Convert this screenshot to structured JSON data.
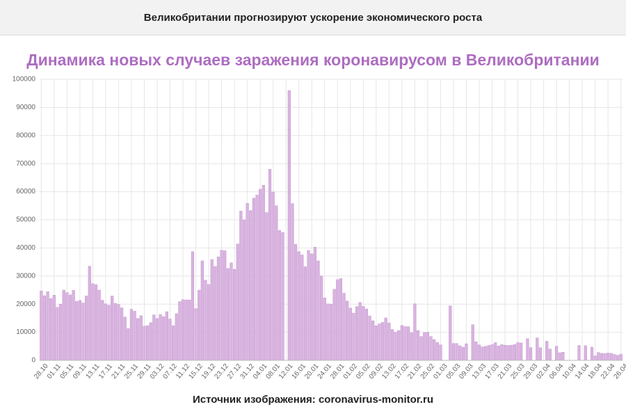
{
  "header": {
    "title": "Великобритании прогнозируют ускорение экономического роста"
  },
  "caption": "Источник изображения: coronavirus-monitor.ru",
  "chart_data": {
    "type": "bar",
    "title": "Динамика новых случаев заражения коронавирусом в Великобритании",
    "color": "#d9b3e0",
    "grid": true,
    "ylim": [
      0,
      100000
    ],
    "yticks": [
      0,
      10000,
      20000,
      30000,
      40000,
      50000,
      60000,
      70000,
      80000,
      90000,
      100000
    ],
    "categories": [
      "28.10",
      null,
      null,
      null,
      "01.11",
      null,
      null,
      null,
      "05.11",
      null,
      null,
      null,
      "09.11",
      null,
      null,
      null,
      "13.11",
      null,
      null,
      null,
      "17.11",
      null,
      null,
      null,
      "21.11",
      null,
      null,
      null,
      "25.11",
      null,
      null,
      null,
      "29.11",
      null,
      null,
      null,
      "03.12",
      null,
      null,
      null,
      "07.12",
      null,
      null,
      null,
      "11.12",
      null,
      null,
      null,
      "15.12",
      null,
      null,
      null,
      "19.12",
      null,
      null,
      null,
      "23.12",
      null,
      null,
      null,
      "27.12",
      null,
      null,
      null,
      "31.12",
      null,
      null,
      null,
      "04.01",
      null,
      null,
      null,
      "08.01",
      null,
      null,
      null,
      "12.01",
      null,
      null,
      null,
      "16.01",
      null,
      null,
      null,
      "20.01",
      null,
      null,
      null,
      "24.01",
      null,
      null,
      null,
      "28.01",
      null,
      null,
      null,
      "01.02",
      null,
      null,
      null,
      "05.02",
      null,
      null,
      null,
      "09.02",
      null,
      null,
      null,
      "13.02",
      null,
      null,
      null,
      "17.02",
      null,
      null,
      null,
      "21.02",
      null,
      null,
      null,
      "25.02",
      null,
      null,
      null,
      "01.03",
      null,
      null,
      null,
      "05.03",
      null,
      null,
      null,
      "09.03",
      null,
      null,
      null,
      "13.03",
      null,
      null,
      null,
      "17.03",
      null,
      null,
      null,
      "21.03",
      null,
      null,
      null,
      "25.03",
      null,
      null,
      null,
      "29.03",
      null,
      null,
      null,
      "02.04",
      null,
      null,
      null,
      "06.04",
      null,
      null,
      null,
      "10.04",
      null,
      null,
      null,
      "14.04",
      null,
      null,
      null,
      "18.04",
      null,
      null,
      null,
      "22.04",
      null,
      null,
      null,
      "26.04"
    ],
    "values": [
      24700,
      23000,
      24400,
      22000,
      23200,
      18900,
      20000,
      25000,
      24100,
      23300,
      24900,
      21000,
      21300,
      20400,
      22900,
      33500,
      27300,
      26900,
      25000,
      21400,
      20100,
      19600,
      22900,
      20300,
      19900,
      18700,
      15400,
      11300,
      18200,
      17500,
      14900,
      15900,
      12200,
      12300,
      13400,
      16200,
      14900,
      16300,
      15500,
      17300,
      14700,
      12300,
      16600,
      20900,
      21600,
      21500,
      21500,
      38700,
      18400,
      25000,
      35400,
      28500,
      27000,
      35900,
      33400,
      36800,
      39200,
      39000,
      32700,
      34700,
      32400,
      41400,
      53100,
      50000,
      55900,
      53300,
      57700,
      58800,
      60900,
      62300,
      52600,
      68000,
      59900,
      55000,
      46200,
      45500,
      0,
      96000,
      55800,
      41300,
      38700,
      37500,
      33300,
      39100,
      37900,
      40300,
      35400,
      30000,
      22200,
      20100,
      20000,
      25300,
      28700,
      29100,
      23900,
      21100,
      18600,
      16800,
      19100,
      20600,
      19200,
      18300,
      15800,
      14100,
      12300,
      13000,
      13500,
      15100,
      13300,
      11000,
      10000,
      10600,
      12400,
      12000,
      12000,
      9800,
      20100,
      10600,
      8500,
      9900,
      10000,
      8500,
      7400,
      6400,
      5500,
      0,
      0,
      19400,
      6000,
      6000,
      5200,
      4700,
      5900,
      0,
      12700,
      6600,
      5500,
      4800,
      5000,
      5300,
      5600,
      6300,
      5100,
      5600,
      5400,
      5300,
      5400,
      5600,
      6300,
      6200,
      0,
      7700,
      4500,
      0,
      8000,
      4500,
      0,
      6800,
      4000,
      0,
      5000,
      2700,
      2900,
      0,
      0,
      0,
      0,
      5300,
      0,
      5200,
      0,
      4700,
      1600,
      2800,
      2500,
      2400,
      2600,
      2500,
      2100,
      1800,
      2200
    ]
  }
}
